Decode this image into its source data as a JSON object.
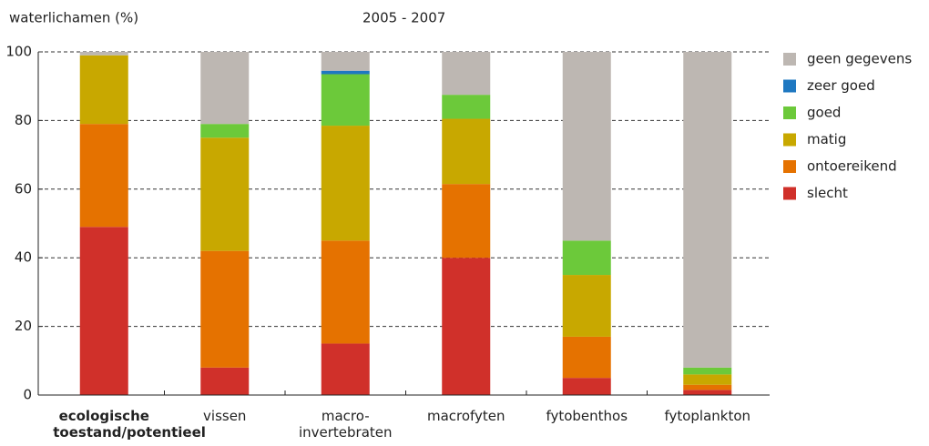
{
  "chart_data": {
    "type": "stacked-bar",
    "title": "2005 - 2007",
    "ylabel": "waterlichamen (%)",
    "categories": [
      "ecologische toestand/potentieel",
      "vissen",
      "macro-invertebraten",
      "macrofyten",
      "fytobenthos",
      "fytoplankton"
    ],
    "series": [
      {
        "name": "slecht",
        "color": "#d0302a",
        "values": [
          49,
          8,
          15,
          40,
          5,
          1.5
        ]
      },
      {
        "name": "ontoereikend",
        "color": "#e57200",
        "values": [
          30,
          34,
          30,
          21.5,
          12,
          1.5
        ]
      },
      {
        "name": "matig",
        "color": "#c8a800",
        "values": [
          20,
          33,
          33.5,
          19,
          18,
          3
        ]
      },
      {
        "name": "goed",
        "color": "#6cc93a",
        "values": [
          0,
          4,
          15,
          7,
          10,
          2
        ]
      },
      {
        "name": "zeer goed",
        "color": "#1f78c1",
        "values": [
          0,
          0,
          1,
          0,
          0,
          0
        ]
      },
      {
        "name": "geen gegevens",
        "color": "#bdb7b2",
        "values": [
          1,
          21,
          5.5,
          12.5,
          55,
          92
        ]
      }
    ],
    "ylim": [
      0,
      100
    ],
    "yticks": [
      0,
      20,
      40,
      60,
      80,
      100
    ],
    "grid": true,
    "legend": "right"
  }
}
